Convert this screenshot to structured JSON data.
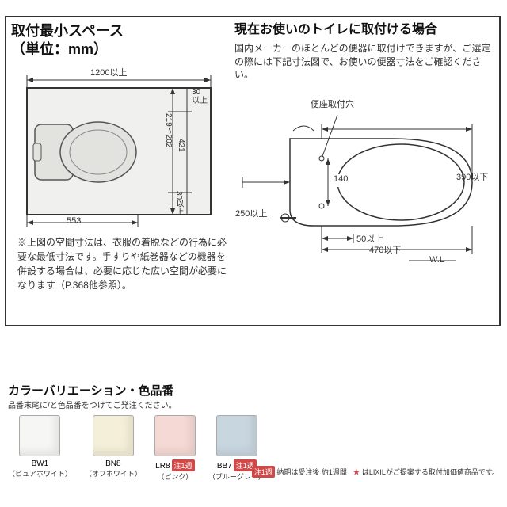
{
  "left": {
    "title_l1": "取付最小スペース",
    "title_l2": "（単位：mm）",
    "title_fontsize": 18,
    "diagram": {
      "outer_w": 240,
      "outer_h": 170,
      "stroke": "#333",
      "fill": "#f0f0ef",
      "dim_top": "1200以上",
      "dim_bottom": "553",
      "toilet": {
        "fill": "#e2e2df",
        "stroke": "#555"
      },
      "dims_right": {
        "a": "30",
        "a2": "以上",
        "b": "219～202",
        "c": "421",
        "d": "30以上"
      }
    },
    "note": "※上図の空間寸法は、衣服の着脱などの行為に必要な最低寸法です。手すりや紙巻器などの機器を併設する場合は、必要に応じた広い空間が必要になります（P.368他参照）。"
  },
  "right": {
    "title": "現在お使いのトイレに取付ける場合",
    "title_fontsize": 16,
    "desc": "国内メーカーのほとんどの便器に取付けできますが、ご選定の際には下記寸法図で、お使いの便器寸法をご確認ください。",
    "diagram": {
      "label_hole": "便座取付穴",
      "d140": "140",
      "d250": "250以上",
      "d390": "390以下",
      "d50": "50以上",
      "d470": "470以下",
      "wl": "W.L",
      "stroke": "#333",
      "fill": "#ffffff"
    }
  },
  "colors": {
    "title": "カラーバリエーション・色品番",
    "sub": "品番末尾に/と色品番をつけてご発注ください。",
    "items": [
      {
        "code": "BW1",
        "name": "（ピュアホワイト）",
        "hex": "#f6f7f5",
        "badge": null
      },
      {
        "code": "BN8",
        "name": "（オフホワイト）",
        "hex": "#f4efd8",
        "badge": null
      },
      {
        "code": "LR8",
        "name": "（ピンク）",
        "hex": "#f5d9d4",
        "badge": "注1週"
      },
      {
        "code": "BB7",
        "name": "（ブルーグレー）",
        "hex": "#c8d6e0",
        "badge": "注1週"
      }
    ]
  },
  "footer": {
    "badge": "注1週",
    "text1": "納期は受注後 約1週間",
    "star": "★",
    "text2": "はLIXILがご提案する取付加価値商品です。"
  }
}
